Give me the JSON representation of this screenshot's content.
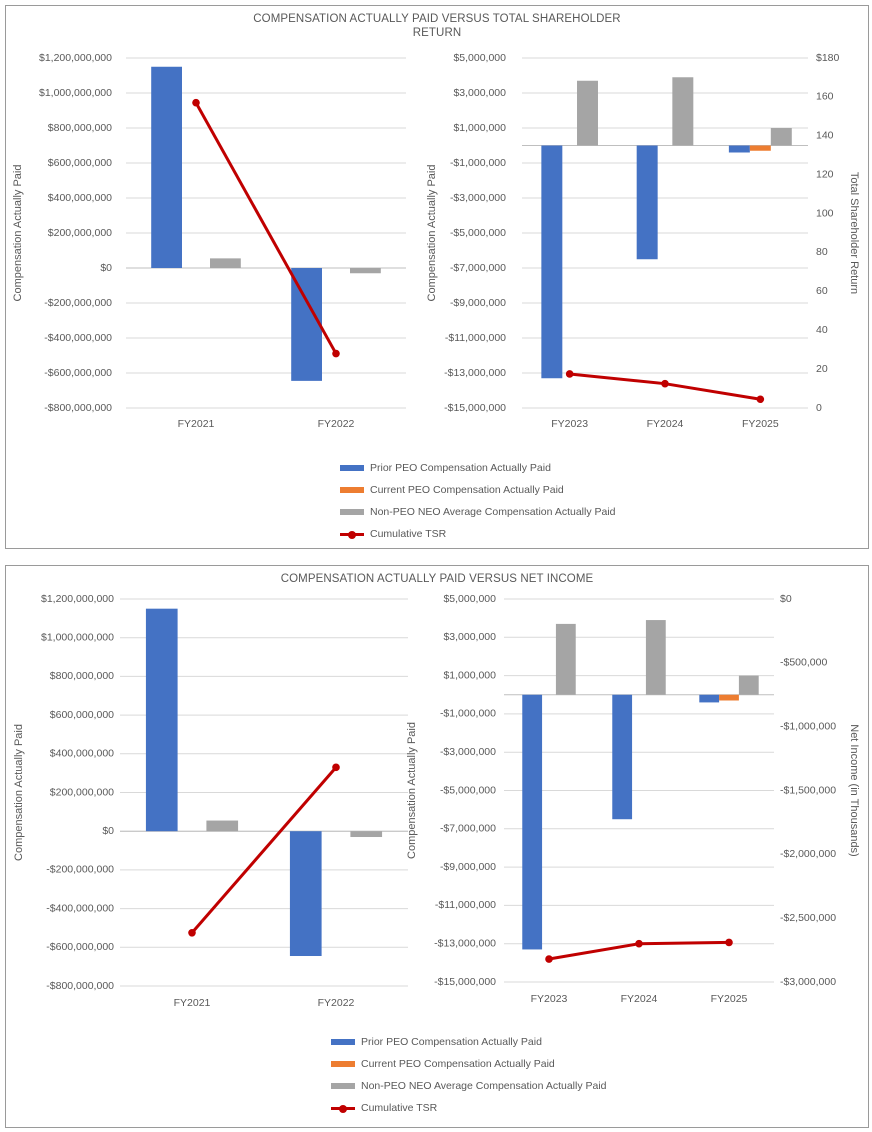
{
  "palette": {
    "prior_peo": "#4472c4",
    "current_peo": "#ed7d31",
    "non_peo": "#a5a5a5",
    "tsr": "#c00000",
    "grid": "#d9d9d9",
    "axis": "#bfbfbf"
  },
  "legend": {
    "items": [
      {
        "label": "Prior PEO Compensation Actually Paid",
        "kind": "bar",
        "color": "#4472c4"
      },
      {
        "label": "Current PEO Compensation Actually Paid",
        "kind": "bar",
        "color": "#ed7d31"
      },
      {
        "label": "Non-PEO NEO Average Compensation Actually Paid",
        "kind": "bar",
        "color": "#a5a5a5"
      },
      {
        "label": "Cumulative TSR",
        "kind": "line",
        "color": "#c00000"
      }
    ]
  },
  "panels": [
    {
      "title_line1": "COMPENSATION ACTUALLY PAID VERSUS TOTAL SHAREHOLDER",
      "title_line2": "RETURN"
    },
    {
      "title_line1": "COMPENSATION ACTUALLY PAID VERSUS NET INCOME",
      "title_line2": ""
    }
  ],
  "chart_data": [
    {
      "id": "p1-left",
      "type": "bar",
      "categories": [
        "FY2021",
        "FY2022"
      ],
      "ylabel": "Compensation Actually Paid",
      "ylim": [
        -800000000,
        1200000000
      ],
      "yticks": [
        1200000000,
        1000000000,
        800000000,
        600000000,
        400000000,
        200000000,
        0,
        -200000000,
        -400000000,
        -600000000,
        -800000000
      ],
      "ytick_labels": [
        "$1,200,000,000",
        "$1,000,000,000",
        "$800,000,000",
        "$600,000,000",
        "$400,000,000",
        "$200,000,000",
        "$0",
        "-$200,000,000",
        "-$400,000,000",
        "-$600,000,000",
        "-$800,000,000"
      ],
      "series": [
        {
          "name": "Prior PEO Compensation Actually Paid",
          "values": [
            1150000000,
            -645000000
          ]
        },
        {
          "name": "Non-PEO NEO Average Compensation Actually Paid",
          "values": [
            55000000,
            -30000000
          ]
        }
      ],
      "line": {
        "name": "Cumulative TSR",
        "axis": "hidden",
        "ylim": [
          0,
          180
        ],
        "values": [
          157,
          28
        ]
      },
      "grid": true
    },
    {
      "id": "p1-right",
      "type": "bar",
      "categories": [
        "FY2023",
        "FY2024",
        "FY2025"
      ],
      "ylabel": "Compensation Actually Paid",
      "y2label": "Total Shareholder Return",
      "ylim": [
        -15000000,
        5000000
      ],
      "yticks": [
        5000000,
        3000000,
        1000000,
        -1000000,
        -3000000,
        -5000000,
        -7000000,
        -9000000,
        -11000000,
        -13000000,
        -15000000
      ],
      "ytick_labels": [
        "$5,000,000",
        "$3,000,000",
        "$1,000,000",
        "-$1,000,000",
        "-$3,000,000",
        "-$5,000,000",
        "-$7,000,000",
        "-$9,000,000",
        "-$11,000,000",
        "-$13,000,000",
        "-$15,000,000"
      ],
      "y2lim": [
        0,
        180
      ],
      "y2ticks": [
        180,
        160,
        140,
        120,
        100,
        80,
        60,
        40,
        20,
        0
      ],
      "y2tick_labels": [
        "$180",
        "160",
        "140",
        "120",
        "100",
        "80",
        "60",
        "40",
        "20",
        "0"
      ],
      "series": [
        {
          "name": "Prior PEO Compensation Actually Paid",
          "values": [
            -13300000,
            -6500000,
            -400000
          ]
        },
        {
          "name": "Current PEO Compensation Actually Paid",
          "values": [
            null,
            null,
            -300000
          ]
        },
        {
          "name": "Non-PEO NEO Average Compensation Actually Paid",
          "values": [
            3700000,
            3900000,
            1000000
          ]
        }
      ],
      "line": {
        "name": "Cumulative TSR",
        "axis": "right",
        "values": [
          17.5,
          12.5,
          4.5
        ]
      },
      "grid": true
    },
    {
      "id": "p2-left",
      "type": "bar",
      "categories": [
        "FY2021",
        "FY2022"
      ],
      "ylabel": "Compensation Actually Paid",
      "ylim": [
        -800000000,
        1200000000
      ],
      "yticks": [
        1200000000,
        1000000000,
        800000000,
        600000000,
        400000000,
        200000000,
        0,
        -200000000,
        -400000000,
        -600000000,
        -800000000
      ],
      "ytick_labels": [
        "$1,200,000,000",
        "$1,000,000,000",
        "$800,000,000",
        "$600,000,000",
        "$400,000,000",
        "$200,000,000",
        "$0",
        "-$200,000,000",
        "-$400,000,000",
        "-$600,000,000",
        "-$800,000,000"
      ],
      "series": [
        {
          "name": "Prior PEO Compensation Actually Paid",
          "values": [
            1150000000,
            -645000000
          ]
        },
        {
          "name": "Non-PEO NEO Average Compensation Actually Paid",
          "values": [
            55000000,
            -30000000
          ]
        }
      ],
      "line": {
        "name": "Cumulative TSR",
        "axis": "hidden",
        "ylim": [
          -800000000,
          1200000000
        ],
        "values": [
          -525000000,
          330000000
        ]
      },
      "grid": true
    },
    {
      "id": "p2-right",
      "type": "bar",
      "categories": [
        "FY2023",
        "FY2024",
        "FY2025"
      ],
      "ylabel": "Compensation Actually Paid",
      "y2label": "Net Income (in Thousands)",
      "ylim": [
        -15000000,
        5000000
      ],
      "yticks": [
        5000000,
        3000000,
        1000000,
        -1000000,
        -3000000,
        -5000000,
        -7000000,
        -9000000,
        -11000000,
        -13000000,
        -15000000
      ],
      "ytick_labels": [
        "$5,000,000",
        "$3,000,000",
        "$1,000,000",
        "-$1,000,000",
        "-$3,000,000",
        "-$5,000,000",
        "-$7,000,000",
        "-$9,000,000",
        "-$11,000,000",
        "-$13,000,000",
        "-$15,000,000"
      ],
      "y2lim": [
        -3000000,
        0
      ],
      "y2ticks": [
        0,
        -500000,
        -1000000,
        -1500000,
        -2000000,
        -2500000,
        -3000000
      ],
      "y2tick_labels": [
        "$0",
        "-$500,000",
        "-$1,000,000",
        "-$1,500,000",
        "-$2,000,000",
        "-$2,500,000",
        "-$3,000,000"
      ],
      "series": [
        {
          "name": "Prior PEO Compensation Actually Paid",
          "values": [
            -13300000,
            -6500000,
            -400000
          ]
        },
        {
          "name": "Current PEO Compensation Actually Paid",
          "values": [
            null,
            null,
            -300000
          ]
        },
        {
          "name": "Non-PEO NEO Average Compensation Actually Paid",
          "values": [
            3700000,
            3900000,
            1000000
          ]
        }
      ],
      "line": {
        "name": "Cumulative TSR",
        "axis": "right",
        "values": [
          -2820000,
          -2700000,
          -2690000
        ]
      },
      "grid": true
    }
  ]
}
